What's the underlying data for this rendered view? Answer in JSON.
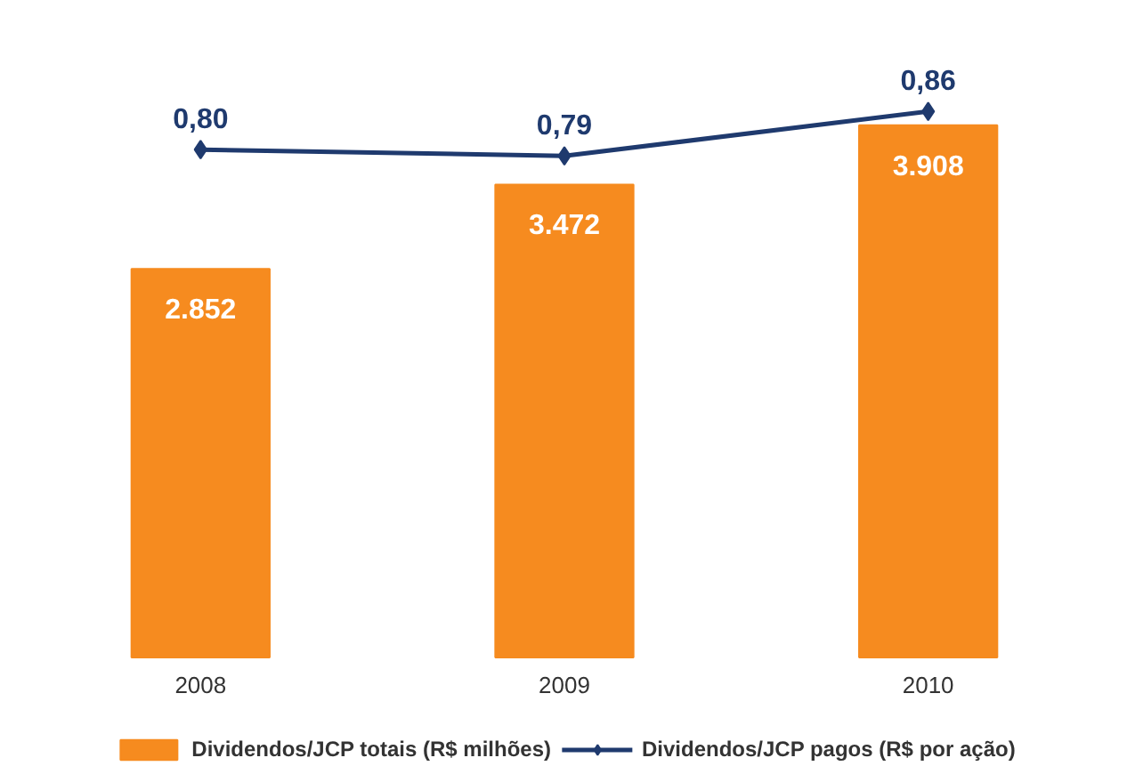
{
  "chart_data": {
    "type": "bar",
    "categories": [
      "2008",
      "2009",
      "2010"
    ],
    "legend": "bottom",
    "marker": "diamond",
    "series": [
      {
        "name": "Dividendos/JCP totais (R$ milhões)",
        "color": "#f68b1f",
        "values": [
          2852,
          3472,
          3908
        ],
        "value_labels": [
          "2.852",
          "3.472",
          "3.908"
        ]
      },
      {
        "type": "line",
        "axis": "y2",
        "name": "Dividendos/JCP pagos (R$ por ação)",
        "color": "#1f3a6e",
        "values": [
          0.8,
          0.79,
          0.86
        ],
        "value_labels": [
          "0,80",
          "0,79",
          "0,86"
        ]
      }
    ]
  }
}
